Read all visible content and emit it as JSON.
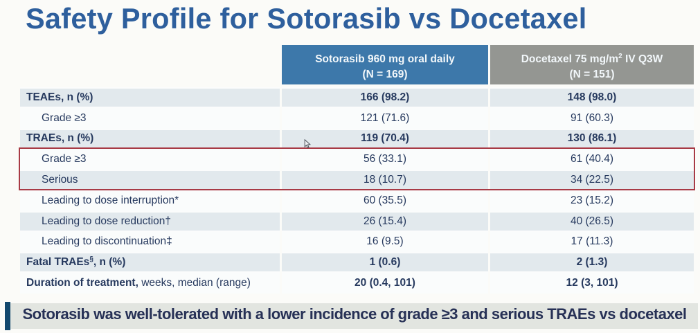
{
  "title": "Safety Profile for Sotorasib vs Docetaxel",
  "table": {
    "columns": [
      {
        "line1_parts": [
          {
            "text": "Sotorasib 960 mg oral daily"
          }
        ],
        "line2": "(N = 169)",
        "bg": "#3d78aa"
      },
      {
        "line1_parts": [
          {
            "text": "Docetaxel 75 mg/m"
          },
          {
            "text": "2",
            "sup": true
          },
          {
            "text": " IV Q3W"
          }
        ],
        "line2": "(N = 151)",
        "bg": "#949692"
      }
    ],
    "rows": [
      {
        "label_parts": [
          {
            "text": "TEAEs, n (%)",
            "bold": true
          }
        ],
        "indent": false,
        "shaded": true,
        "values": [
          "166 (98.2)",
          "148 (98.0)"
        ],
        "values_bold": true
      },
      {
        "label_parts": [
          {
            "text": "Grade ≥3"
          }
        ],
        "indent": true,
        "shaded": false,
        "values": [
          "121 (71.6)",
          "91 (60.3)"
        ],
        "values_bold": false
      },
      {
        "label_parts": [
          {
            "text": "TRAEs, n (%)",
            "bold": true
          }
        ],
        "indent": false,
        "shaded": true,
        "values": [
          "119 (70.4)",
          "130 (86.1)"
        ],
        "values_bold": true
      },
      {
        "label_parts": [
          {
            "text": "Grade ≥3"
          }
        ],
        "indent": true,
        "shaded": false,
        "values": [
          "56 (33.1)",
          "61 (40.4)"
        ],
        "values_bold": false
      },
      {
        "label_parts": [
          {
            "text": "Serious"
          }
        ],
        "indent": true,
        "shaded": true,
        "values": [
          "18 (10.7)",
          "34 (22.5)"
        ],
        "values_bold": false
      },
      {
        "label_parts": [
          {
            "text": "Leading to dose interruption*"
          }
        ],
        "indent": true,
        "shaded": false,
        "values": [
          "60 (35.5)",
          "23 (15.2)"
        ],
        "values_bold": false
      },
      {
        "label_parts": [
          {
            "text": "Leading to dose reduction†"
          }
        ],
        "indent": true,
        "shaded": true,
        "values": [
          "26 (15.4)",
          "40 (26.5)"
        ],
        "values_bold": false
      },
      {
        "label_parts": [
          {
            "text": "Leading to discontinuation‡"
          }
        ],
        "indent": true,
        "shaded": false,
        "values": [
          "16 (9.5)",
          "17 (11.3)"
        ],
        "values_bold": false
      },
      {
        "label_parts": [
          {
            "text": "Fatal TRAEs",
            "bold": true
          },
          {
            "text": "§",
            "bold": true,
            "sup": true
          },
          {
            "text": ", n (%)",
            "bold": true
          }
        ],
        "indent": false,
        "shaded": true,
        "values": [
          "1 (0.6)",
          "2 (1.3)"
        ],
        "values_bold": true
      },
      {
        "label_parts": [
          {
            "text": "Duration of treatment,",
            "bold": true
          },
          {
            "text": " weeks, median (range)"
          }
        ],
        "indent": false,
        "shaded": false,
        "values": [
          "20 (0.4, 101)",
          "12 (3, 101)"
        ],
        "values_bold": true
      }
    ],
    "highlight_box_rows": [
      3,
      4
    ],
    "highlight_color": "#a83a45"
  },
  "banner": {
    "text": "Sotorasib was well-tolerated with a lower incidence of grade ≥3 and serious TRAEs vs docetaxel",
    "bar_color": "#12486d",
    "bg_color": "#e2e5e0"
  },
  "colors": {
    "title": "#2e5f9d",
    "body_text": "#26395e",
    "shaded_row": "#e2e9ed",
    "header_blue": "#3d78aa",
    "header_gray": "#949692"
  }
}
